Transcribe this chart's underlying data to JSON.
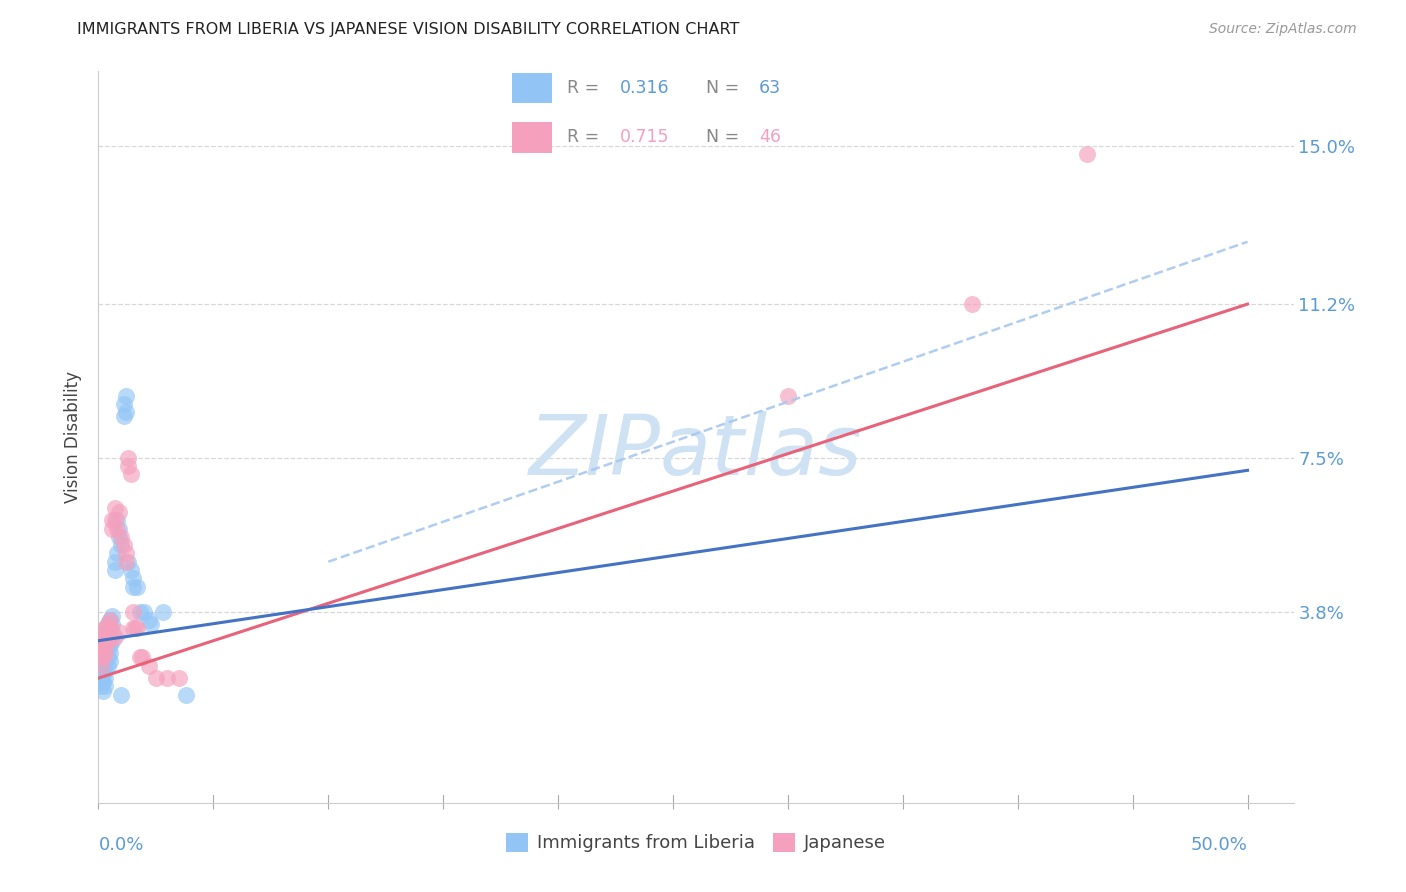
{
  "title": "IMMIGRANTS FROM LIBERIA VS JAPANESE VISION DISABILITY CORRELATION CHART",
  "source": "Source: ZipAtlas.com",
  "ylabel": "Vision Disability",
  "xlim": [
    0.0,
    0.52
  ],
  "ylim": [
    -0.008,
    0.168
  ],
  "r_blue": "0.316",
  "n_blue": "63",
  "r_pink": "0.715",
  "n_pink": "46",
  "blue_color": "#92c5f5",
  "pink_color": "#f5a0bc",
  "blue_line_color": "#4472c4",
  "pink_line_color": "#e8637a",
  "blue_dash_color": "#a8c8f0",
  "axis_color": "#5b9bd5",
  "grid_color": "#d8d8d8",
  "watermark_color": "#cfe2f3",
  "ytick_vals": [
    0.038,
    0.075,
    0.112,
    0.15
  ],
  "ytick_labels": [
    "3.8%",
    "7.5%",
    "11.2%",
    "15.0%"
  ],
  "blue_line": [
    [
      0.0,
      0.031
    ],
    [
      0.5,
      0.072
    ]
  ],
  "pink_line": [
    [
      0.0,
      0.022
    ],
    [
      0.5,
      0.112
    ]
  ],
  "blue_dash_line": [
    [
      0.1,
      0.05
    ],
    [
      0.5,
      0.127
    ]
  ],
  "blue_scatter": [
    [
      0.001,
      0.032
    ],
    [
      0.001,
      0.03
    ],
    [
      0.001,
      0.028
    ],
    [
      0.001,
      0.027
    ],
    [
      0.001,
      0.025
    ],
    [
      0.001,
      0.024
    ],
    [
      0.001,
      0.022
    ],
    [
      0.001,
      0.02
    ],
    [
      0.002,
      0.033
    ],
    [
      0.002,
      0.031
    ],
    [
      0.002,
      0.029
    ],
    [
      0.002,
      0.027
    ],
    [
      0.002,
      0.025
    ],
    [
      0.002,
      0.023
    ],
    [
      0.002,
      0.021
    ],
    [
      0.002,
      0.019
    ],
    [
      0.003,
      0.034
    ],
    [
      0.003,
      0.032
    ],
    [
      0.003,
      0.03
    ],
    [
      0.003,
      0.028
    ],
    [
      0.003,
      0.026
    ],
    [
      0.003,
      0.024
    ],
    [
      0.003,
      0.022
    ],
    [
      0.003,
      0.02
    ],
    [
      0.004,
      0.035
    ],
    [
      0.004,
      0.033
    ],
    [
      0.004,
      0.031
    ],
    [
      0.004,
      0.029
    ],
    [
      0.004,
      0.027
    ],
    [
      0.004,
      0.025
    ],
    [
      0.005,
      0.036
    ],
    [
      0.005,
      0.034
    ],
    [
      0.005,
      0.032
    ],
    [
      0.005,
      0.03
    ],
    [
      0.005,
      0.028
    ],
    [
      0.005,
      0.026
    ],
    [
      0.006,
      0.037
    ],
    [
      0.006,
      0.035
    ],
    [
      0.006,
      0.033
    ],
    [
      0.006,
      0.031
    ],
    [
      0.007,
      0.05
    ],
    [
      0.007,
      0.048
    ],
    [
      0.008,
      0.052
    ],
    [
      0.008,
      0.06
    ],
    [
      0.009,
      0.058
    ],
    [
      0.009,
      0.056
    ],
    [
      0.01,
      0.054
    ],
    [
      0.01,
      0.018
    ],
    [
      0.011,
      0.088
    ],
    [
      0.011,
      0.085
    ],
    [
      0.012,
      0.09
    ],
    [
      0.012,
      0.086
    ],
    [
      0.013,
      0.05
    ],
    [
      0.014,
      0.048
    ],
    [
      0.015,
      0.046
    ],
    [
      0.015,
      0.044
    ],
    [
      0.017,
      0.044
    ],
    [
      0.018,
      0.038
    ],
    [
      0.02,
      0.038
    ],
    [
      0.022,
      0.036
    ],
    [
      0.023,
      0.035
    ],
    [
      0.028,
      0.038
    ],
    [
      0.038,
      0.018
    ]
  ],
  "pink_scatter": [
    [
      0.001,
      0.031
    ],
    [
      0.001,
      0.029
    ],
    [
      0.001,
      0.027
    ],
    [
      0.001,
      0.025
    ],
    [
      0.002,
      0.033
    ],
    [
      0.002,
      0.031
    ],
    [
      0.002,
      0.029
    ],
    [
      0.002,
      0.027
    ],
    [
      0.003,
      0.034
    ],
    [
      0.003,
      0.032
    ],
    [
      0.003,
      0.03
    ],
    [
      0.003,
      0.028
    ],
    [
      0.004,
      0.035
    ],
    [
      0.004,
      0.033
    ],
    [
      0.004,
      0.031
    ],
    [
      0.005,
      0.036
    ],
    [
      0.005,
      0.034
    ],
    [
      0.005,
      0.032
    ],
    [
      0.006,
      0.06
    ],
    [
      0.006,
      0.058
    ],
    [
      0.007,
      0.063
    ],
    [
      0.007,
      0.06
    ],
    [
      0.007,
      0.032
    ],
    [
      0.008,
      0.058
    ],
    [
      0.009,
      0.062
    ],
    [
      0.009,
      0.033
    ],
    [
      0.01,
      0.056
    ],
    [
      0.011,
      0.054
    ],
    [
      0.012,
      0.052
    ],
    [
      0.012,
      0.05
    ],
    [
      0.013,
      0.075
    ],
    [
      0.013,
      0.073
    ],
    [
      0.014,
      0.071
    ],
    [
      0.015,
      0.038
    ],
    [
      0.015,
      0.034
    ],
    [
      0.016,
      0.034
    ],
    [
      0.017,
      0.034
    ],
    [
      0.018,
      0.027
    ],
    [
      0.019,
      0.027
    ],
    [
      0.022,
      0.025
    ],
    [
      0.025,
      0.022
    ],
    [
      0.03,
      0.022
    ],
    [
      0.035,
      0.022
    ],
    [
      0.3,
      0.09
    ],
    [
      0.38,
      0.112
    ],
    [
      0.43,
      0.148
    ]
  ]
}
